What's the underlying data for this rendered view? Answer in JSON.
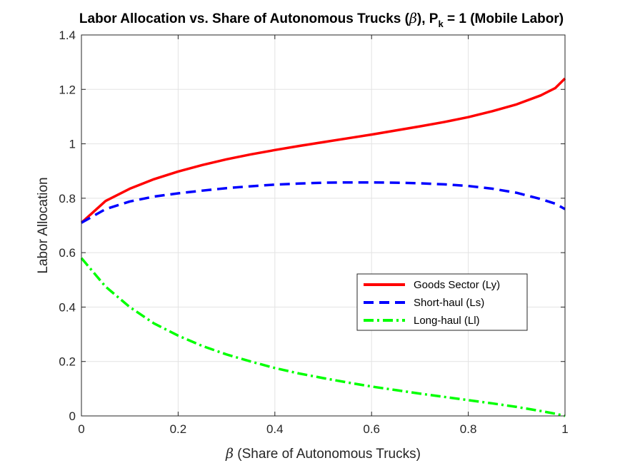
{
  "chart_data": {
    "type": "line",
    "title_prefix": "Labor Allocation vs. Share of Autonomous Trucks (",
    "title_beta": "β",
    "title_middle": "), P",
    "title_sub": "k",
    "title_suffix": " = 1 (Mobile Labor)",
    "xlabel_symbol": "β",
    "xlabel_text": " (Share of Autonomous Trucks)",
    "ylabel": "Labor Allocation",
    "xlim": [
      0,
      1
    ],
    "ylim": [
      0,
      1.4
    ],
    "xticks": [
      0,
      0.2,
      0.4,
      0.6,
      0.8,
      1
    ],
    "xtick_labels": [
      "0",
      "0.2",
      "0.4",
      "0.6",
      "0.8",
      "1"
    ],
    "yticks": [
      0,
      0.2,
      0.4,
      0.6,
      0.8,
      1,
      1.2,
      1.4
    ],
    "ytick_labels": [
      "0",
      "0.2",
      "0.4",
      "0.6",
      "0.8",
      "1",
      "1.2",
      "1.4"
    ],
    "grid": true,
    "legend_position": "center-right",
    "x": [
      0,
      0.05,
      0.1,
      0.15,
      0.2,
      0.25,
      0.3,
      0.35,
      0.4,
      0.45,
      0.5,
      0.55,
      0.6,
      0.65,
      0.7,
      0.75,
      0.8,
      0.85,
      0.9,
      0.95,
      0.98,
      1
    ],
    "series": [
      {
        "name": "Goods Sector (Ly)",
        "color": "#ff0000",
        "style": "solid",
        "values": [
          0.71,
          0.79,
          0.835,
          0.87,
          0.898,
          0.922,
          0.943,
          0.961,
          0.977,
          0.992,
          1.006,
          1.02,
          1.034,
          1.049,
          1.064,
          1.08,
          1.098,
          1.12,
          1.145,
          1.178,
          1.205,
          1.24
        ]
      },
      {
        "name": "Short-haul (Ls)",
        "color": "#0000ff",
        "style": "dashed",
        "values": [
          0.71,
          0.76,
          0.788,
          0.806,
          0.818,
          0.828,
          0.837,
          0.844,
          0.85,
          0.854,
          0.857,
          0.858,
          0.858,
          0.857,
          0.855,
          0.851,
          0.845,
          0.835,
          0.82,
          0.797,
          0.78,
          0.76
        ]
      },
      {
        "name": "Long-haul (Ll)",
        "color": "#00ff00",
        "style": "dashdot",
        "values": [
          0.58,
          0.475,
          0.4,
          0.34,
          0.295,
          0.257,
          0.226,
          0.2,
          0.176,
          0.156,
          0.139,
          0.123,
          0.108,
          0.095,
          0.082,
          0.07,
          0.058,
          0.046,
          0.033,
          0.018,
          0.008,
          0.0
        ]
      }
    ]
  }
}
